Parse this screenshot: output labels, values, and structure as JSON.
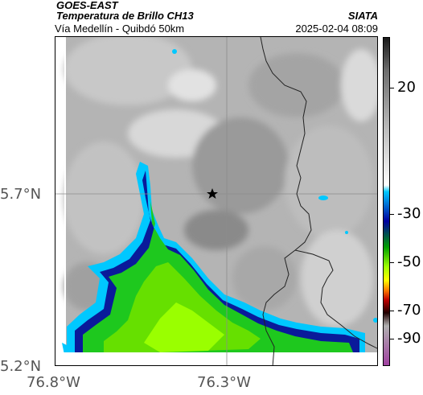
{
  "header": {
    "satellite": "GOES-EAST",
    "product": "Temperatura de Brillo CH13",
    "region": "Vía Medellín - Quibdó 50km",
    "organization": "SIATA",
    "timestamp": "2025-02-04 08:09"
  },
  "axes": {
    "lat_ticks": [
      "5.7°N",
      "5.2°N"
    ],
    "lon_ticks": [
      "76.8°W",
      "76.3°W"
    ]
  },
  "colorbar": {
    "ticks": [
      "20",
      "-30",
      "-50",
      "-70",
      "-90"
    ],
    "colors": [
      "#1a1a1a",
      "#6e6e6e",
      "#bdbdbd",
      "#ffffff",
      "#00c8ff",
      "#0000a0",
      "#00a000",
      "#a0ff00",
      "#ffff00",
      "#ff8000",
      "#c00000",
      "#200000",
      "#b0b0b0",
      "#a040a0"
    ]
  },
  "map": {
    "marker": "star-icon",
    "palette": {
      "cloud_light": "#d6d6d6",
      "cloud_mid": "#9a9a9a",
      "cold_cyan": "#00c8ff",
      "cold_blue": "#0a1a9a",
      "very_cold_green": "#1ec81e",
      "coldest_lime": "#9aff00"
    }
  }
}
